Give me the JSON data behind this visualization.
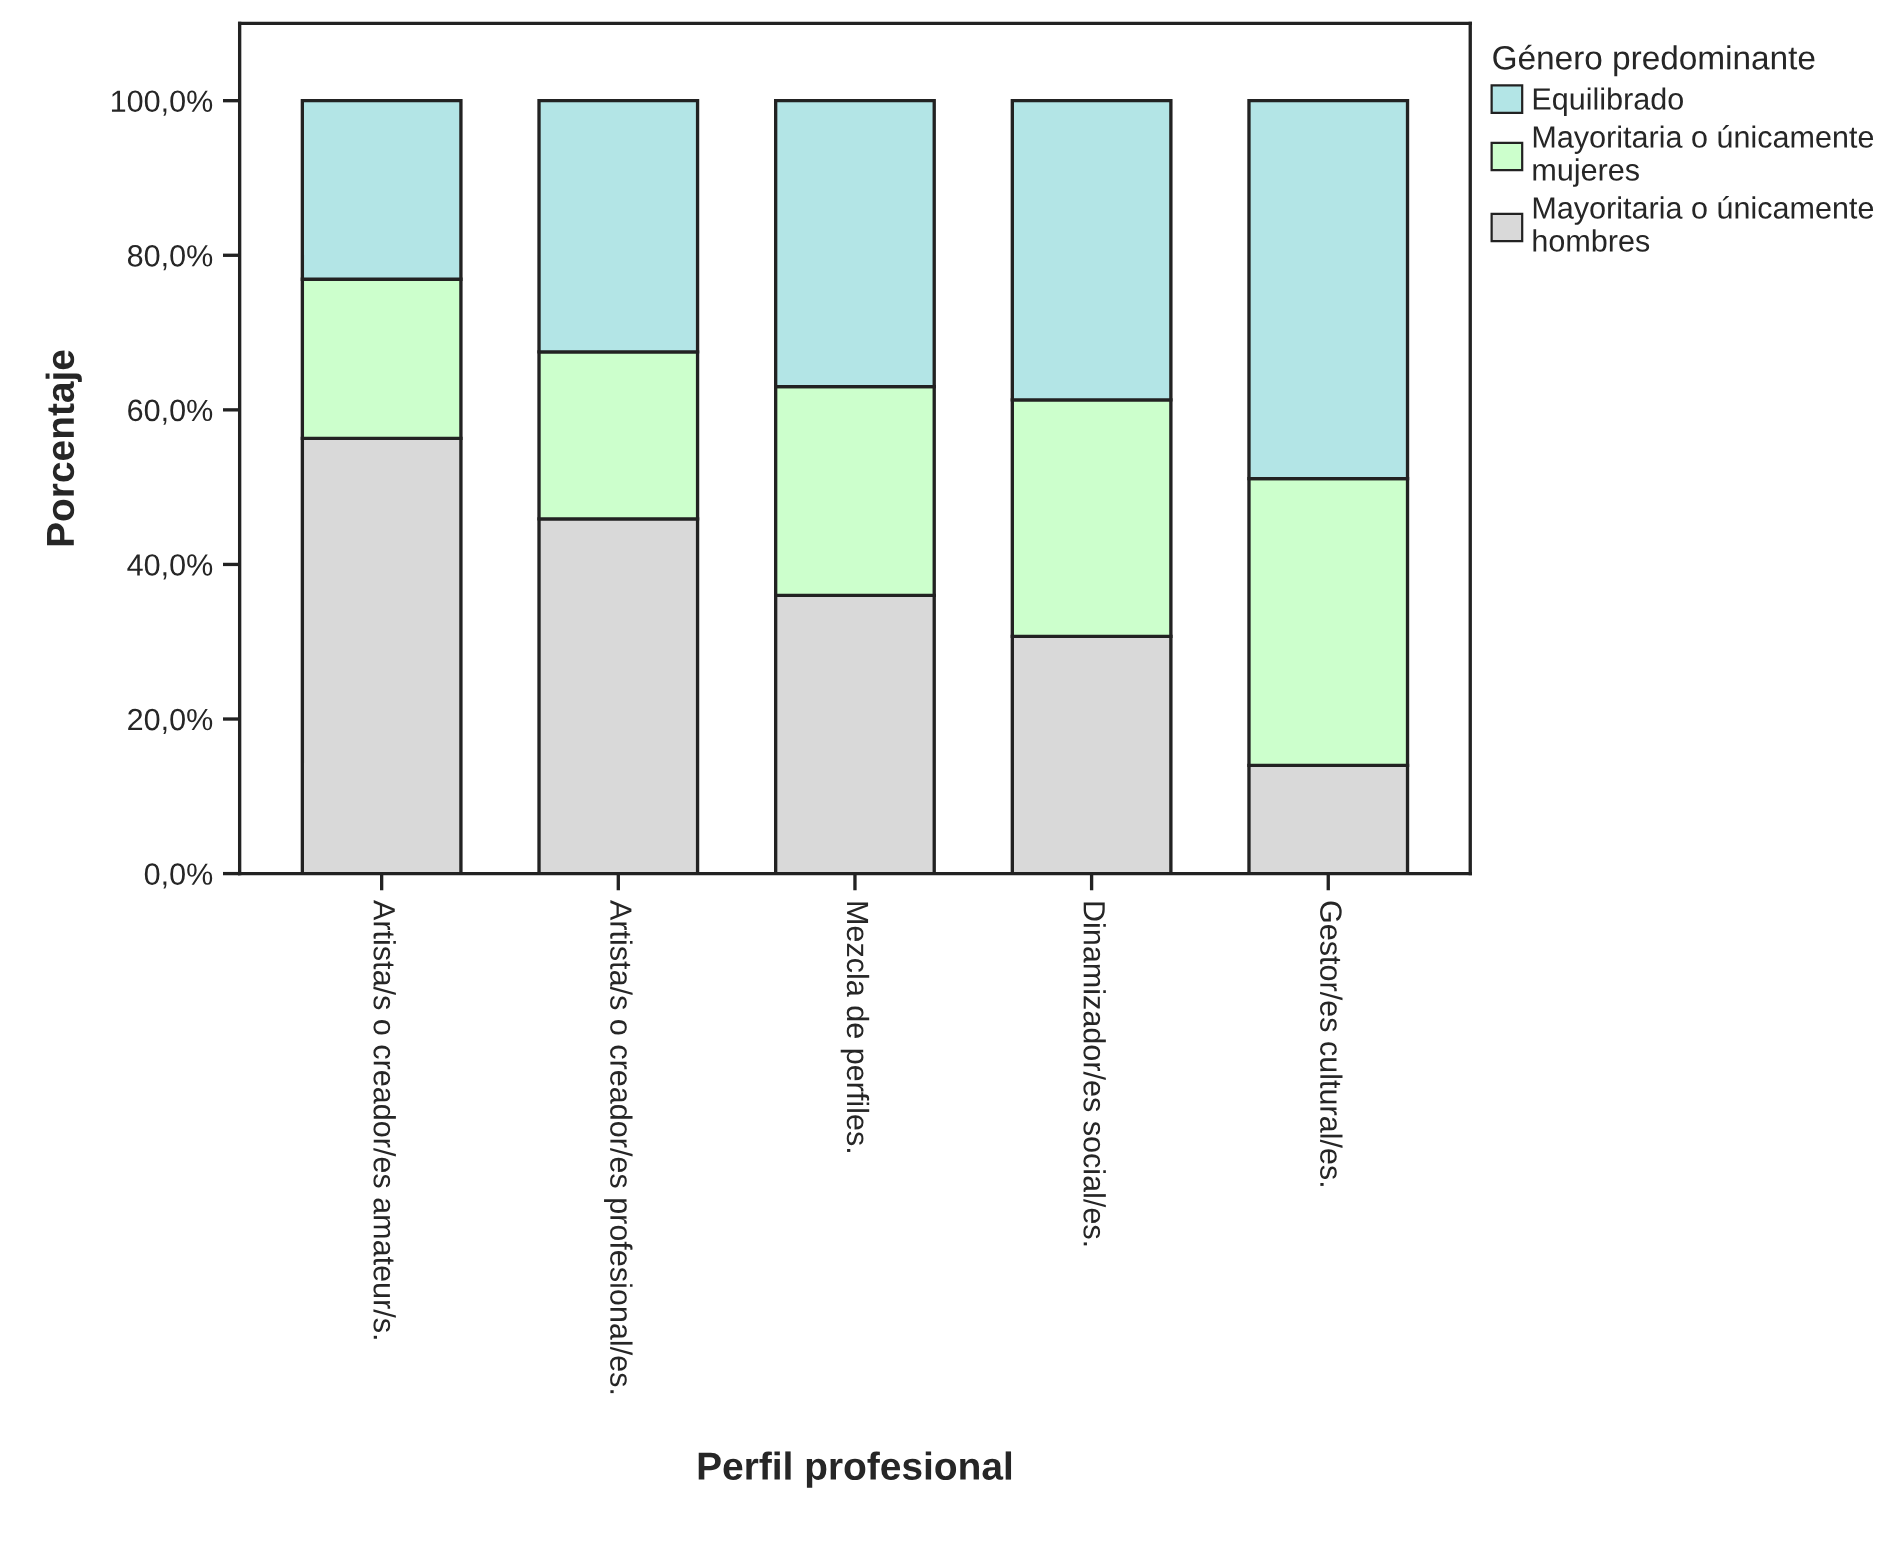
{
  "chart_data": {
    "type": "bar",
    "stacked": true,
    "xlabel": "Perfil profesional",
    "ylabel": "Porcentaje",
    "legend_title": "Género predominante",
    "categories": [
      "Artista/s o creador/es amateur/s.",
      "Artista/s o creador/es profesional/es.",
      "Mezcla de perfiles.",
      "Dinamizador/es social/es.",
      "Gestor/es cultural/es."
    ],
    "series": [
      {
        "name": "Mayoritaria o únicamente hombres",
        "color": "#d9d9d9",
        "values": [
          56.3,
          45.9,
          36.0,
          30.7,
          14.0
        ]
      },
      {
        "name": "Mayoritaria o únicamente mujeres",
        "color": "#ccffcc",
        "values": [
          20.6,
          21.6,
          27.0,
          30.6,
          37.1
        ]
      },
      {
        "name": "Equilibrado",
        "color": "#b3e5e6",
        "values": [
          23.1,
          32.5,
          37.0,
          38.7,
          48.9
        ]
      }
    ],
    "ylim": [
      0,
      110
    ],
    "yticks": [
      {
        "value": 0,
        "label": "0,0%"
      },
      {
        "value": 20,
        "label": "20,0%"
      },
      {
        "value": 40,
        "label": "40,0%"
      },
      {
        "value": 60,
        "label": "60,0%"
      },
      {
        "value": 80,
        "label": "80,0%"
      },
      {
        "value": 100,
        "label": "100,0%"
      }
    ],
    "grid": false,
    "legend": "top right"
  }
}
